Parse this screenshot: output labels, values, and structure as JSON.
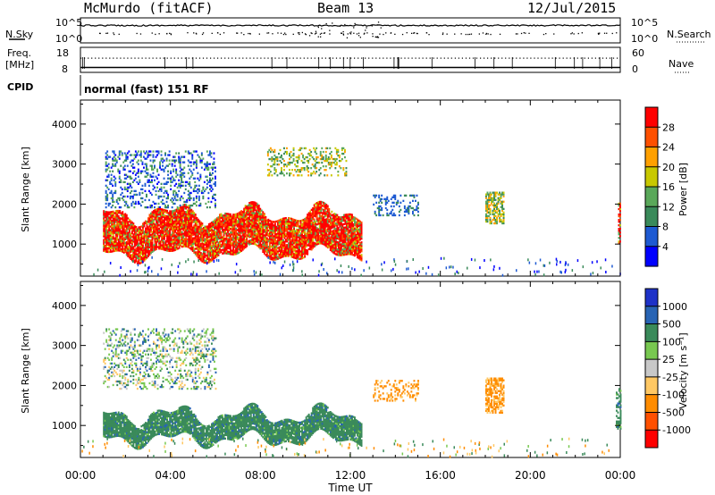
{
  "header": {
    "station": "McMurdo (fitACF)",
    "beam": "Beam 13",
    "date": "12/Jul/2015"
  },
  "top_panel": {
    "left_label": "N.Sky",
    "right_label": "N.Search",
    "left_ticks": [
      "10^5",
      "10^0"
    ],
    "right_ticks": [
      "10^5",
      "10^0"
    ]
  },
  "freq_panel": {
    "label_line1": "Freq.",
    "label_line2": "[MHz]",
    "left_ticks": [
      "18",
      "8"
    ],
    "right_ticks": [
      "60",
      "0"
    ],
    "right_label": "Nave"
  },
  "cpid": {
    "label": "CPID",
    "value": "normal (fast) 151 RF"
  },
  "colors": {
    "power_scale": [
      "#0000ff",
      "#1e5ad2",
      "#3a8a5a",
      "#5aa85a",
      "#c8c800",
      "#ffa000",
      "#ff5000",
      "#ff0000"
    ],
    "velocity_scale": [
      "#1e32c8",
      "#2864b4",
      "#3a8a5a",
      "#78c850",
      "#c8c8c8",
      "#ffc864",
      "#ff8c00",
      "#ff5000",
      "#ff0000"
    ]
  },
  "chart_data": [
    {
      "type": "heatmap",
      "name": "power",
      "ylabel": "Slant Range [km]",
      "yticks": [
        "1000",
        "2000",
        "3000",
        "4000"
      ],
      "ylim": [
        200,
        4600
      ],
      "colorbar_label": "Power [dB]",
      "colorbar_ticks": [
        "4",
        "8",
        "12",
        "16",
        "20",
        "24",
        "28"
      ],
      "clim": [
        0,
        32
      ],
      "regions": [
        {
          "t": [
            1.1,
            6.0
          ],
          "r": [
            1900,
            3300
          ],
          "density": "sparse",
          "level": "low-mid"
        },
        {
          "t": [
            1.0,
            12.5
          ],
          "r": [
            600,
            2100
          ],
          "density": "dense",
          "level": "high"
        },
        {
          "t": [
            8.3,
            11.8
          ],
          "r": [
            2700,
            3400
          ],
          "density": "sparse",
          "level": "mid"
        },
        {
          "t": [
            13.0,
            15.0
          ],
          "r": [
            1700,
            2200
          ],
          "density": "sparse",
          "level": "low"
        },
        {
          "t": [
            18.0,
            18.8
          ],
          "r": [
            1500,
            2300
          ],
          "density": "patch",
          "level": "mid"
        },
        {
          "t": [
            23.9,
            24.0
          ],
          "r": [
            1000,
            2000
          ],
          "density": "patch",
          "level": "high"
        }
      ]
    },
    {
      "type": "heatmap",
      "name": "velocity",
      "ylabel": "Slant Range [km]",
      "yticks": [
        "1000",
        "2000",
        "3000",
        "4000"
      ],
      "ylim": [
        200,
        4600
      ],
      "colorbar_label": "Velocity [m s⁻¹]",
      "colorbar_ticks": [
        "1000",
        "500",
        "100",
        "25",
        "-25",
        "-100",
        "-500",
        "-1000"
      ],
      "regions": [
        {
          "t": [
            1.0,
            12.5
          ],
          "r": [
            500,
            1600
          ],
          "density": "dense",
          "level": "small-positive"
        },
        {
          "t": [
            1.0,
            6.0
          ],
          "r": [
            1900,
            3400
          ],
          "density": "sparse",
          "level": "mixed"
        },
        {
          "t": [
            13.0,
            15.0
          ],
          "r": [
            1600,
            2100
          ],
          "density": "sparse",
          "level": "negative"
        },
        {
          "t": [
            18.0,
            18.8
          ],
          "r": [
            1300,
            2200
          ],
          "density": "patch",
          "level": "negative"
        },
        {
          "t": [
            23.8,
            24.0
          ],
          "r": [
            900,
            1900
          ],
          "density": "patch",
          "level": "small-positive"
        }
      ]
    }
  ],
  "x_axis": {
    "label": "Time UT",
    "ticks": [
      "00:00",
      "04:00",
      "08:00",
      "12:00",
      "16:00",
      "20:00",
      "00:00"
    ],
    "range_hours": [
      0,
      24
    ]
  }
}
